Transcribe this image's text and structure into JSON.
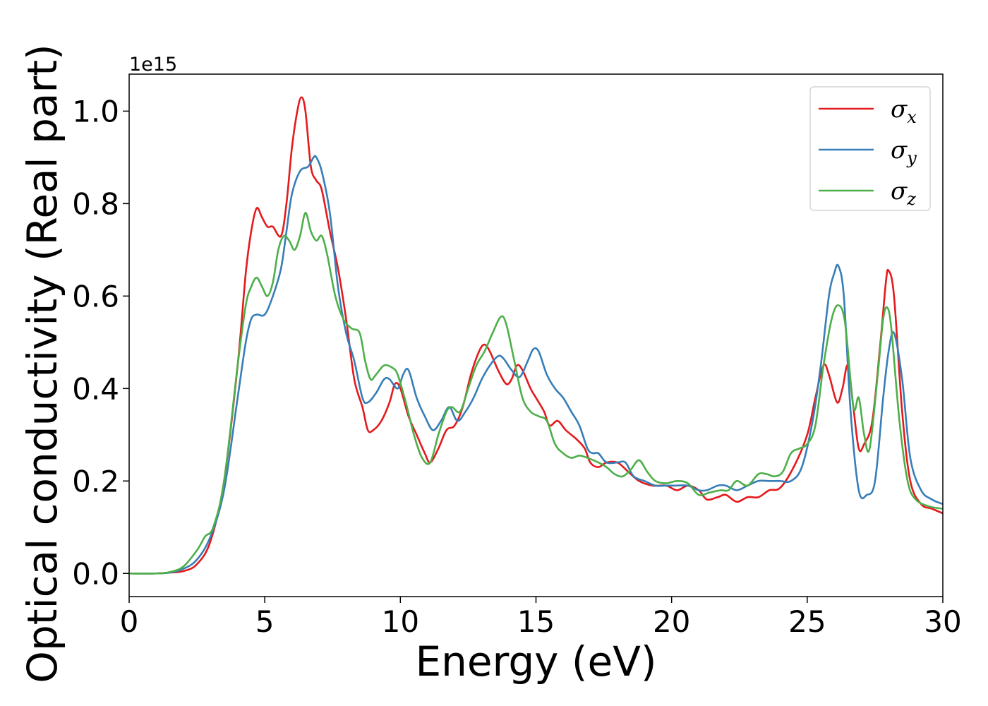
{
  "chart_data": {
    "type": "line",
    "xlabel": "Energy (eV)",
    "ylabel": "Optical conductivity (Real part)",
    "y_offset_label": "1e15",
    "xlim": [
      0,
      30
    ],
    "ylim": [
      -0.05,
      1.08
    ],
    "x_ticks": [
      0,
      5,
      10,
      15,
      20,
      25,
      30
    ],
    "y_ticks": [
      0.0,
      0.2,
      0.4,
      0.6,
      0.8,
      1.0
    ],
    "y_tick_labels": [
      "0.0",
      "0.2",
      "0.4",
      "0.6",
      "0.8",
      "1.0"
    ],
    "grid": false,
    "legend_position": "top-right",
    "series": [
      {
        "name": "σx",
        "symbol": "σ",
        "subscript": "x",
        "color": "#e41a1c",
        "points": [
          [
            0,
            0
          ],
          [
            1,
            0
          ],
          [
            1.5,
            0.002
          ],
          [
            2,
            0.005
          ],
          [
            2.5,
            0.02
          ],
          [
            3,
            0.07
          ],
          [
            3.5,
            0.2
          ],
          [
            4,
            0.45
          ],
          [
            4.3,
            0.65
          ],
          [
            4.5,
            0.74
          ],
          [
            4.7,
            0.79
          ],
          [
            4.9,
            0.77
          ],
          [
            5.1,
            0.75
          ],
          [
            5.3,
            0.75
          ],
          [
            5.6,
            0.73
          ],
          [
            5.8,
            0.8
          ],
          [
            6.0,
            0.92
          ],
          [
            6.2,
            1.0
          ],
          [
            6.35,
            1.03
          ],
          [
            6.5,
            1.0
          ],
          [
            6.7,
            0.88
          ],
          [
            6.9,
            0.85
          ],
          [
            7.1,
            0.83
          ],
          [
            7.4,
            0.74
          ],
          [
            7.7,
            0.66
          ],
          [
            8.0,
            0.55
          ],
          [
            8.3,
            0.42
          ],
          [
            8.6,
            0.36
          ],
          [
            8.8,
            0.31
          ],
          [
            9.0,
            0.31
          ],
          [
            9.3,
            0.33
          ],
          [
            9.6,
            0.37
          ],
          [
            9.8,
            0.41
          ],
          [
            10.0,
            0.4
          ],
          [
            10.3,
            0.34
          ],
          [
            10.6,
            0.3
          ],
          [
            10.9,
            0.26
          ],
          [
            11.1,
            0.24
          ],
          [
            11.4,
            0.27
          ],
          [
            11.7,
            0.31
          ],
          [
            12.0,
            0.32
          ],
          [
            12.3,
            0.36
          ],
          [
            12.6,
            0.43
          ],
          [
            12.9,
            0.48
          ],
          [
            13.1,
            0.495
          ],
          [
            13.3,
            0.48
          ],
          [
            13.6,
            0.44
          ],
          [
            13.9,
            0.41
          ],
          [
            14.1,
            0.42
          ],
          [
            14.3,
            0.45
          ],
          [
            14.5,
            0.44
          ],
          [
            14.8,
            0.4
          ],
          [
            15.0,
            0.38
          ],
          [
            15.3,
            0.35
          ],
          [
            15.5,
            0.32
          ],
          [
            15.8,
            0.33
          ],
          [
            16.1,
            0.31
          ],
          [
            16.5,
            0.29
          ],
          [
            16.8,
            0.27
          ],
          [
            17.0,
            0.24
          ],
          [
            17.3,
            0.23
          ],
          [
            17.6,
            0.24
          ],
          [
            18.0,
            0.24
          ],
          [
            18.4,
            0.22
          ],
          [
            18.8,
            0.2
          ],
          [
            19.3,
            0.19
          ],
          [
            19.8,
            0.19
          ],
          [
            20.2,
            0.18
          ],
          [
            20.6,
            0.19
          ],
          [
            21.0,
            0.18
          ],
          [
            21.3,
            0.16
          ],
          [
            21.7,
            0.165
          ],
          [
            22.0,
            0.17
          ],
          [
            22.4,
            0.155
          ],
          [
            22.8,
            0.165
          ],
          [
            23.2,
            0.165
          ],
          [
            23.6,
            0.18
          ],
          [
            24.0,
            0.185
          ],
          [
            24.5,
            0.23
          ],
          [
            25.0,
            0.3
          ],
          [
            25.3,
            0.38
          ],
          [
            25.6,
            0.45
          ],
          [
            25.8,
            0.43
          ],
          [
            26.1,
            0.37
          ],
          [
            26.3,
            0.4
          ],
          [
            26.5,
            0.45
          ],
          [
            26.7,
            0.36
          ],
          [
            26.9,
            0.27
          ],
          [
            27.1,
            0.28
          ],
          [
            27.4,
            0.33
          ],
          [
            27.7,
            0.5
          ],
          [
            27.9,
            0.63
          ],
          [
            28.0,
            0.655
          ],
          [
            28.2,
            0.6
          ],
          [
            28.5,
            0.35
          ],
          [
            28.8,
            0.2
          ],
          [
            29.2,
            0.15
          ],
          [
            29.6,
            0.14
          ],
          [
            30,
            0.13
          ]
        ]
      },
      {
        "name": "σy",
        "symbol": "σ",
        "subscript": "y",
        "color": "#377eb8",
        "points": [
          [
            0,
            0
          ],
          [
            1,
            0
          ],
          [
            1.5,
            0.002
          ],
          [
            2,
            0.01
          ],
          [
            2.5,
            0.03
          ],
          [
            3,
            0.08
          ],
          [
            3.5,
            0.18
          ],
          [
            4,
            0.38
          ],
          [
            4.3,
            0.5
          ],
          [
            4.5,
            0.55
          ],
          [
            4.7,
            0.56
          ],
          [
            5.0,
            0.56
          ],
          [
            5.3,
            0.6
          ],
          [
            5.6,
            0.66
          ],
          [
            5.8,
            0.74
          ],
          [
            6.0,
            0.82
          ],
          [
            6.3,
            0.87
          ],
          [
            6.6,
            0.88
          ],
          [
            6.8,
            0.9
          ],
          [
            6.9,
            0.9
          ],
          [
            7.1,
            0.87
          ],
          [
            7.4,
            0.78
          ],
          [
            7.7,
            0.62
          ],
          [
            8.0,
            0.52
          ],
          [
            8.3,
            0.46
          ],
          [
            8.6,
            0.38
          ],
          [
            8.8,
            0.37
          ],
          [
            9.1,
            0.39
          ],
          [
            9.4,
            0.42
          ],
          [
            9.6,
            0.42
          ],
          [
            9.9,
            0.4
          ],
          [
            10.1,
            0.43
          ],
          [
            10.3,
            0.44
          ],
          [
            10.6,
            0.38
          ],
          [
            10.9,
            0.34
          ],
          [
            11.2,
            0.31
          ],
          [
            11.5,
            0.33
          ],
          [
            11.8,
            0.36
          ],
          [
            12.1,
            0.33
          ],
          [
            12.4,
            0.35
          ],
          [
            12.7,
            0.38
          ],
          [
            13.0,
            0.42
          ],
          [
            13.3,
            0.45
          ],
          [
            13.6,
            0.47
          ],
          [
            13.8,
            0.465
          ],
          [
            14.1,
            0.44
          ],
          [
            14.4,
            0.425
          ],
          [
            14.7,
            0.46
          ],
          [
            14.9,
            0.485
          ],
          [
            15.1,
            0.48
          ],
          [
            15.4,
            0.43
          ],
          [
            15.7,
            0.4
          ],
          [
            16.0,
            0.38
          ],
          [
            16.3,
            0.35
          ],
          [
            16.6,
            0.32
          ],
          [
            16.9,
            0.27
          ],
          [
            17.1,
            0.26
          ],
          [
            17.3,
            0.26
          ],
          [
            17.6,
            0.24
          ],
          [
            18.0,
            0.24
          ],
          [
            18.3,
            0.24
          ],
          [
            18.6,
            0.21
          ],
          [
            19.0,
            0.2
          ],
          [
            19.4,
            0.19
          ],
          [
            19.8,
            0.19
          ],
          [
            20.2,
            0.19
          ],
          [
            20.6,
            0.19
          ],
          [
            21.0,
            0.18
          ],
          [
            21.3,
            0.18
          ],
          [
            21.7,
            0.19
          ],
          [
            22.0,
            0.19
          ],
          [
            22.4,
            0.18
          ],
          [
            22.8,
            0.19
          ],
          [
            23.2,
            0.2
          ],
          [
            23.6,
            0.2
          ],
          [
            24.0,
            0.2
          ],
          [
            24.4,
            0.2
          ],
          [
            24.8,
            0.23
          ],
          [
            25.2,
            0.33
          ],
          [
            25.5,
            0.45
          ],
          [
            25.8,
            0.6
          ],
          [
            26.0,
            0.65
          ],
          [
            26.15,
            0.665
          ],
          [
            26.35,
            0.6
          ],
          [
            26.6,
            0.35
          ],
          [
            26.9,
            0.18
          ],
          [
            27.2,
            0.17
          ],
          [
            27.5,
            0.2
          ],
          [
            27.8,
            0.38
          ],
          [
            28.0,
            0.48
          ],
          [
            28.2,
            0.52
          ],
          [
            28.5,
            0.42
          ],
          [
            28.8,
            0.25
          ],
          [
            29.2,
            0.18
          ],
          [
            29.6,
            0.16
          ],
          [
            30,
            0.15
          ]
        ]
      },
      {
        "name": "σz",
        "symbol": "σ",
        "subscript": "z",
        "color": "#4daf4a",
        "points": [
          [
            0,
            0
          ],
          [
            1,
            0
          ],
          [
            1.5,
            0.003
          ],
          [
            2,
            0.015
          ],
          [
            2.5,
            0.05
          ],
          [
            2.8,
            0.08
          ],
          [
            3.1,
            0.1
          ],
          [
            3.5,
            0.2
          ],
          [
            4,
            0.45
          ],
          [
            4.3,
            0.58
          ],
          [
            4.5,
            0.62
          ],
          [
            4.7,
            0.64
          ],
          [
            4.9,
            0.62
          ],
          [
            5.1,
            0.6
          ],
          [
            5.3,
            0.63
          ],
          [
            5.5,
            0.7
          ],
          [
            5.7,
            0.73
          ],
          [
            5.9,
            0.72
          ],
          [
            6.1,
            0.7
          ],
          [
            6.3,
            0.73
          ],
          [
            6.5,
            0.78
          ],
          [
            6.7,
            0.74
          ],
          [
            6.9,
            0.72
          ],
          [
            7.1,
            0.73
          ],
          [
            7.3,
            0.69
          ],
          [
            7.6,
            0.6
          ],
          [
            7.9,
            0.55
          ],
          [
            8.2,
            0.53
          ],
          [
            8.5,
            0.52
          ],
          [
            8.7,
            0.46
          ],
          [
            8.9,
            0.42
          ],
          [
            9.1,
            0.43
          ],
          [
            9.4,
            0.45
          ],
          [
            9.7,
            0.445
          ],
          [
            9.9,
            0.43
          ],
          [
            10.2,
            0.37
          ],
          [
            10.5,
            0.3
          ],
          [
            10.8,
            0.25
          ],
          [
            11.1,
            0.24
          ],
          [
            11.4,
            0.3
          ],
          [
            11.7,
            0.35
          ],
          [
            11.9,
            0.36
          ],
          [
            12.2,
            0.35
          ],
          [
            12.5,
            0.4
          ],
          [
            12.8,
            0.45
          ],
          [
            13.1,
            0.48
          ],
          [
            13.4,
            0.52
          ],
          [
            13.7,
            0.555
          ],
          [
            13.9,
            0.54
          ],
          [
            14.2,
            0.46
          ],
          [
            14.5,
            0.38
          ],
          [
            14.8,
            0.35
          ],
          [
            15.1,
            0.34
          ],
          [
            15.4,
            0.33
          ],
          [
            15.7,
            0.28
          ],
          [
            16.0,
            0.26
          ],
          [
            16.3,
            0.25
          ],
          [
            16.6,
            0.255
          ],
          [
            16.9,
            0.25
          ],
          [
            17.3,
            0.24
          ],
          [
            17.6,
            0.23
          ],
          [
            17.9,
            0.215
          ],
          [
            18.2,
            0.21
          ],
          [
            18.5,
            0.225
          ],
          [
            18.8,
            0.245
          ],
          [
            19.1,
            0.22
          ],
          [
            19.4,
            0.2
          ],
          [
            19.8,
            0.195
          ],
          [
            20.2,
            0.2
          ],
          [
            20.6,
            0.195
          ],
          [
            21.0,
            0.17
          ],
          [
            21.4,
            0.175
          ],
          [
            21.8,
            0.18
          ],
          [
            22.1,
            0.18
          ],
          [
            22.4,
            0.2
          ],
          [
            22.8,
            0.19
          ],
          [
            23.2,
            0.215
          ],
          [
            23.5,
            0.215
          ],
          [
            23.8,
            0.21
          ],
          [
            24.1,
            0.22
          ],
          [
            24.4,
            0.26
          ],
          [
            24.7,
            0.27
          ],
          [
            25.0,
            0.28
          ],
          [
            25.3,
            0.32
          ],
          [
            25.6,
            0.45
          ],
          [
            25.9,
            0.55
          ],
          [
            26.15,
            0.58
          ],
          [
            26.4,
            0.54
          ],
          [
            26.7,
            0.36
          ],
          [
            26.9,
            0.38
          ],
          [
            27.1,
            0.3
          ],
          [
            27.3,
            0.27
          ],
          [
            27.6,
            0.43
          ],
          [
            27.8,
            0.55
          ],
          [
            27.95,
            0.575
          ],
          [
            28.1,
            0.53
          ],
          [
            28.4,
            0.33
          ],
          [
            28.7,
            0.2
          ],
          [
            29.0,
            0.16
          ],
          [
            29.5,
            0.145
          ],
          [
            30,
            0.14
          ]
        ]
      }
    ]
  }
}
